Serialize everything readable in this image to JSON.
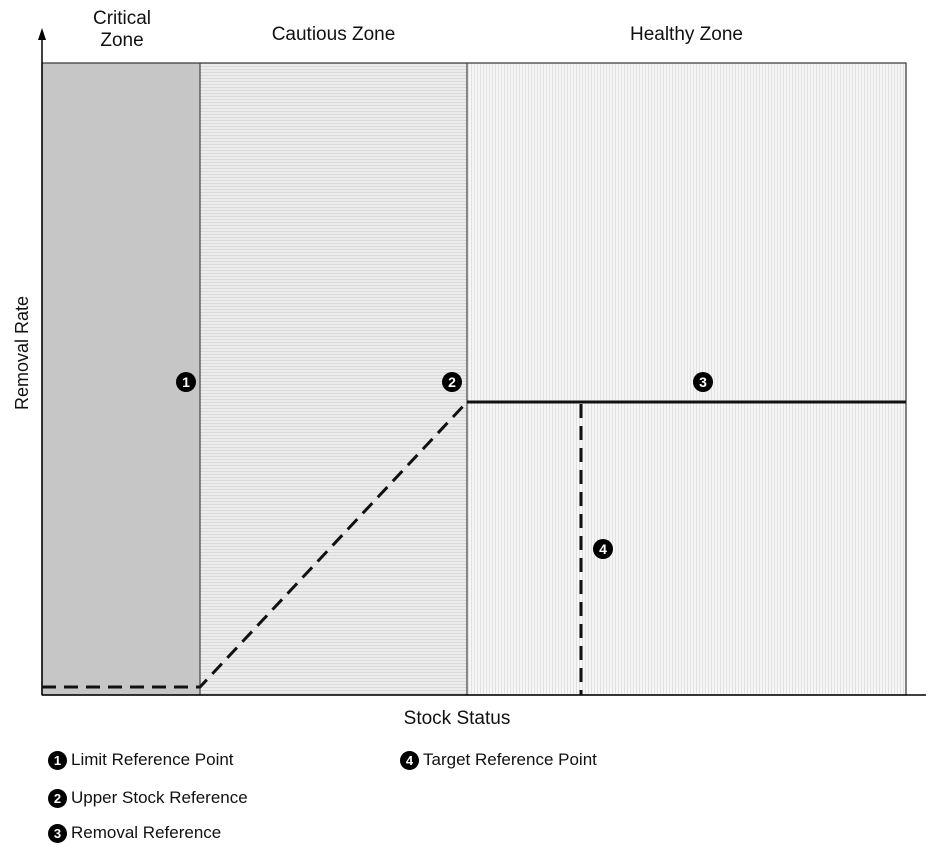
{
  "zones": [
    {
      "label": "Critical Zone"
    },
    {
      "label": "Cautious Zone"
    },
    {
      "label": "Healthy Zone"
    }
  ],
  "axes": {
    "y_label": "Removal Rate",
    "x_label": "Stock Status"
  },
  "markers": [
    "1",
    "2",
    "3",
    "4"
  ],
  "legend": {
    "items": [
      {
        "marker": "1",
        "label": "Limit Reference Point"
      },
      {
        "marker": "2",
        "label": "Upper Stock Reference"
      },
      {
        "marker": "3",
        "label": "Removal Reference"
      },
      {
        "marker": "4",
        "label": "Target Reference Point"
      }
    ]
  }
}
